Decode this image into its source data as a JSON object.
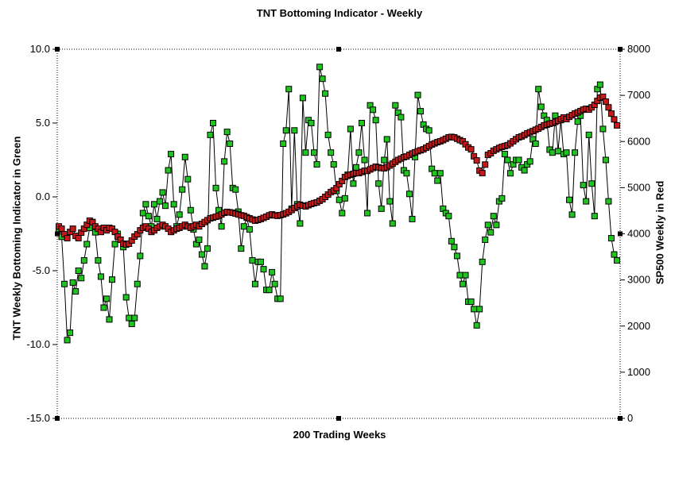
{
  "chart_data": {
    "type": "line",
    "title": "TNT Bottoming Indicator - Weekly",
    "xlabel": "200 Trading Weeks",
    "x_points": 200,
    "grid": false,
    "legend": "none (series identified by colored axis titles)",
    "selection_handles": true,
    "colors": {
      "tnt_marker": "#1FC41F",
      "sp500_marker": "#C61A1A",
      "connector_line": "#000000",
      "frame": "#000000",
      "text": "#000000",
      "background": "#ffffff"
    },
    "left_axis": {
      "label": "TNT Weekly Bottoming Indicator in Green",
      "min": -15.0,
      "max": 10.0,
      "tick_labels": [
        "10.0",
        "5.0",
        "0.0",
        "-5.0",
        "-10.0",
        "-15.0"
      ],
      "tick_values": [
        10,
        5,
        0,
        -5,
        -10,
        -15
      ]
    },
    "right_axis": {
      "label": "SP500 Weekly in Red",
      "min": 0,
      "max": 8000,
      "tick_labels": [
        "8000",
        "7000",
        "6000",
        "5000",
        "4000",
        "3000",
        "2000",
        "1000",
        "0"
      ],
      "tick_values": [
        8000,
        7000,
        6000,
        5000,
        4000,
        3000,
        2000,
        1000,
        0
      ]
    },
    "series": [
      {
        "name": "TNT Weekly Bottoming Indicator",
        "axis": "left",
        "marker": "square",
        "marker_color": "#1FC41F",
        "values": [
          -2.2,
          -2.7,
          -5.9,
          -9.7,
          -9.2,
          -5.8,
          -6.4,
          -5.0,
          -5.5,
          -4.3,
          -3.2,
          -2.1,
          -1.7,
          -2.4,
          -4.3,
          -5.4,
          -7.5,
          -6.9,
          -8.3,
          -5.6,
          -3.2,
          -2.5,
          -2.9,
          -3.4,
          -6.8,
          -8.2,
          -8.6,
          -8.2,
          -5.9,
          -4.0,
          -1.1,
          -0.5,
          -1.3,
          -2.0,
          -0.5,
          -1.5,
          -0.3,
          0.3,
          -0.6,
          1.8,
          2.9,
          -0.5,
          -2.0,
          -1.2,
          0.5,
          2.7,
          1.2,
          -0.9,
          -2.2,
          -3.2,
          -2.9,
          -3.9,
          -4.7,
          -3.5,
          4.2,
          5.0,
          0.6,
          -0.9,
          -2.0,
          2.4,
          4.4,
          3.6,
          0.6,
          0.5,
          -1.0,
          -3.5,
          -2.0,
          -1.4,
          -2.2,
          -4.3,
          -5.9,
          -4.4,
          -4.4,
          -4.9,
          -6.3,
          -6.3,
          -5.1,
          -5.9,
          -6.9,
          -6.9,
          3.6,
          4.5,
          7.3,
          -0.8,
          4.5,
          -0.5,
          -1.8,
          6.7,
          3.0,
          5.2,
          5.0,
          3.0,
          2.2,
          8.8,
          8.0,
          7.0,
          4.2,
          3.0,
          2.2,
          0.4,
          -0.2,
          -1.1,
          -0.1,
          1.5,
          4.6,
          0.9,
          2.0,
          3.0,
          5.0,
          2.5,
          -1.1,
          6.2,
          5.9,
          5.2,
          0.9,
          -0.8,
          2.5,
          3.9,
          -0.3,
          -1.8,
          6.2,
          5.7,
          5.4,
          1.8,
          1.6,
          0.2,
          -1.5,
          2.7,
          6.9,
          5.8,
          4.9,
          4.6,
          4.5,
          1.9,
          1.6,
          1.1,
          1.6,
          -0.8,
          -1.1,
          -1.3,
          -3.0,
          -3.4,
          -4.0,
          -5.3,
          -5.9,
          -5.3,
          -7.1,
          -7.1,
          -7.6,
          -8.7,
          -7.6,
          -4.4,
          -2.9,
          -1.9,
          -2.4,
          -1.3,
          -1.9,
          -0.3,
          -0.1,
          2.9,
          2.5,
          1.6,
          2.2,
          2.5,
          2.5,
          2.0,
          1.8,
          2.2,
          2.4,
          3.9,
          3.6,
          7.3,
          6.1,
          5.5,
          5.2,
          3.2,
          3.0,
          5.5,
          3.1,
          5.2,
          2.9,
          3.0,
          -0.2,
          -1.2,
          3.0,
          5.1,
          5.5,
          0.8,
          -0.3,
          4.2,
          0.9,
          -1.3,
          7.3,
          7.6,
          4.6,
          2.5,
          -0.3,
          -2.8,
          -3.9,
          -4.3
        ]
      },
      {
        "name": "SP500 Weekly",
        "axis": "right",
        "marker": "square",
        "marker_color": "#C61A1A",
        "values": [
          4160,
          4110,
          3990,
          3905,
          4040,
          4110,
          3955,
          3905,
          4025,
          4110,
          4195,
          4285,
          4250,
          4160,
          4110,
          4040,
          4130,
          4075,
          4130,
          4110,
          4040,
          3940,
          3870,
          3785,
          3765,
          3785,
          3855,
          3940,
          3990,
          4075,
          4130,
          4160,
          4110,
          4040,
          4075,
          4130,
          4160,
          4195,
          4160,
          4110,
          4040,
          4075,
          4110,
          4130,
          4160,
          4195,
          4160,
          4130,
          4160,
          4195,
          4160,
          4215,
          4255,
          4295,
          4335,
          4350,
          4370,
          4390,
          4420,
          4455,
          4475,
          4465,
          4455,
          4440,
          4420,
          4400,
          4390,
          4360,
          4335,
          4310,
          4285,
          4300,
          4320,
          4345,
          4370,
          4400,
          4420,
          4400,
          4390,
          4405,
          4420,
          4445,
          4475,
          4515,
          4560,
          4595,
          4630,
          4610,
          4595,
          4620,
          4645,
          4665,
          4680,
          4715,
          4750,
          4800,
          4850,
          4905,
          4940,
          4990,
          5075,
          5145,
          5230,
          5255,
          5280,
          5300,
          5315,
          5315,
          5340,
          5365,
          5365,
          5395,
          5425,
          5455,
          5440,
          5425,
          5420,
          5445,
          5480,
          5520,
          5560,
          5600,
          5630,
          5660,
          5675,
          5710,
          5740,
          5765,
          5790,
          5810,
          5830,
          5865,
          5900,
          5935,
          5960,
          5985,
          6005,
          6030,
          6060,
          6090,
          6100,
          6090,
          6060,
          6030,
          6005,
          5940,
          5870,
          5830,
          5680,
          5590,
          5370,
          5315,
          5500,
          5710,
          5745,
          5800,
          5830,
          5860,
          5885,
          5900,
          5920,
          5960,
          6005,
          6050,
          6090,
          6110,
          6140,
          6175,
          6200,
          6225,
          6255,
          6280,
          6315,
          6350,
          6365,
          6385,
          6400,
          6425,
          6450,
          6485,
          6520,
          6485,
          6535,
          6570,
          6605,
          6630,
          6660,
          6690,
          6710,
          6692,
          6740,
          6795,
          6880,
          6950,
          6970,
          6865,
          6740,
          6605,
          6480,
          6350
        ]
      }
    ]
  }
}
